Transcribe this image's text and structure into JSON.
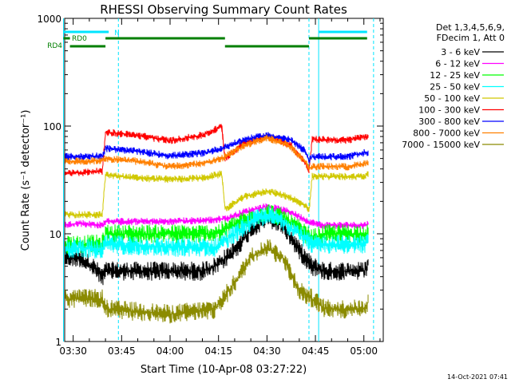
{
  "chart_data": {
    "type": "line",
    "title": "RHESSI Observing Summary Count Rates",
    "ylabel": "Count Rate (s⁻¹ detector⁻¹)",
    "xlabel": "Start Time (10-Apr-08 03:27:22)",
    "yscale": "log",
    "ylim": [
      1,
      1000
    ],
    "xlim": [
      "03:27:22",
      "05:06:00"
    ],
    "x_ticks": [
      "03:30",
      "03:45",
      "04:00",
      "04:15",
      "04:30",
      "04:45",
      "05:00"
    ],
    "y_ticks": [
      "1",
      "10",
      "100",
      "1000"
    ],
    "info_lines": [
      "Det 1,3,4,5,6,9,",
      "FDecim 1, Att 0"
    ],
    "timestamp": "14-Oct-2021 07:41",
    "flags": [
      {
        "name": "RD0",
        "color": "#007f00",
        "segments": [
          [
            "03:27",
            "03:29"
          ],
          [
            "03:40",
            "04:17"
          ],
          [
            "04:43",
            "05:01"
          ]
        ]
      },
      {
        "name": "RD4",
        "color": "#007f00",
        "segments": [
          [
            "03:29",
            "03:40"
          ],
          [
            "04:17",
            "04:43"
          ]
        ]
      },
      {
        "name": "N",
        "color": "#00e5ff",
        "segments": [
          [
            "03:27",
            "03:41"
          ],
          [
            "04:46",
            "05:01"
          ]
        ]
      }
    ],
    "vlines": {
      "color": "#00e5ff",
      "solid": [
        "03:27",
        "04:46"
      ],
      "dashed": [
        "03:44",
        "04:43",
        "05:03"
      ]
    },
    "series": [
      {
        "name": "3 - 6 keV",
        "color": "#000000",
        "points": [
          [
            "03:27",
            6
          ],
          [
            "03:32",
            6
          ],
          [
            "03:36",
            5
          ],
          [
            "03:39",
            4
          ],
          [
            "03:40",
            4.5
          ],
          [
            "04:00",
            4.5
          ],
          [
            "04:10",
            4.5
          ],
          [
            "04:14",
            5
          ],
          [
            "04:20",
            7
          ],
          [
            "04:25",
            11
          ],
          [
            "04:30",
            14
          ],
          [
            "04:35",
            12
          ],
          [
            "04:40",
            7
          ],
          [
            "04:44",
            5
          ],
          [
            "04:48",
            4.5
          ],
          [
            "05:00",
            4.5
          ],
          [
            "05:02",
            5.5
          ]
        ]
      },
      {
        "name": "6 - 12 keV",
        "color": "#ff00ff",
        "points": [
          [
            "03:27",
            12
          ],
          [
            "03:32",
            12.5
          ],
          [
            "03:39",
            12
          ],
          [
            "03:40",
            13
          ],
          [
            "04:00",
            13
          ],
          [
            "04:14",
            13.5
          ],
          [
            "04:18",
            14
          ],
          [
            "04:23",
            16
          ],
          [
            "04:30",
            18
          ],
          [
            "04:37",
            16
          ],
          [
            "04:43",
            13
          ],
          [
            "04:47",
            12
          ],
          [
            "05:00",
            12
          ],
          [
            "05:02",
            12.5
          ]
        ]
      },
      {
        "name": "12 - 25 keV",
        "color": "#00ff00",
        "points": [
          [
            "03:27",
            8
          ],
          [
            "03:32",
            8
          ],
          [
            "03:39",
            8
          ],
          [
            "03:40",
            10
          ],
          [
            "04:00",
            10
          ],
          [
            "04:14",
            10
          ],
          [
            "04:20",
            12
          ],
          [
            "04:25",
            14
          ],
          [
            "04:30",
            16
          ],
          [
            "04:35",
            14
          ],
          [
            "04:40",
            11
          ],
          [
            "04:44",
            9
          ],
          [
            "04:48",
            10
          ],
          [
            "05:00",
            10
          ],
          [
            "05:02",
            10
          ]
        ]
      },
      {
        "name": "25 - 50 keV",
        "color": "#00ffff",
        "points": [
          [
            "03:27",
            7
          ],
          [
            "03:32",
            7.5
          ],
          [
            "03:39",
            7
          ],
          [
            "03:40",
            8
          ],
          [
            "04:00",
            7.5
          ],
          [
            "04:14",
            7.5
          ],
          [
            "04:20",
            10
          ],
          [
            "04:25",
            13
          ],
          [
            "04:30",
            15
          ],
          [
            "04:35",
            13
          ],
          [
            "04:40",
            10
          ],
          [
            "04:44",
            8
          ],
          [
            "04:48",
            8
          ],
          [
            "05:00",
            8
          ],
          [
            "05:02",
            8.5
          ]
        ]
      },
      {
        "name": "50 - 100 keV",
        "color": "#d0c800",
        "points": [
          [
            "03:27",
            15
          ],
          [
            "03:32",
            15
          ],
          [
            "03:39",
            15
          ],
          [
            "03:40",
            35
          ],
          [
            "03:50",
            33
          ],
          [
            "04:00",
            32
          ],
          [
            "04:10",
            33
          ],
          [
            "04:16",
            36
          ],
          [
            "04:17",
            17
          ],
          [
            "04:23",
            22
          ],
          [
            "04:30",
            25
          ],
          [
            "04:37",
            22
          ],
          [
            "04:42",
            18
          ],
          [
            "04:43",
            16
          ],
          [
            "04:44",
            34
          ],
          [
            "05:00",
            34
          ],
          [
            "05:02",
            37
          ]
        ]
      },
      {
        "name": "100 - 300 keV",
        "color": "#ff0000",
        "points": [
          [
            "03:27",
            36
          ],
          [
            "03:32",
            37
          ],
          [
            "03:39",
            38
          ],
          [
            "03:40",
            88
          ],
          [
            "03:50",
            82
          ],
          [
            "04:00",
            73
          ],
          [
            "04:10",
            82
          ],
          [
            "04:16",
            99
          ],
          [
            "04:17",
            50
          ],
          [
            "04:23",
            70
          ],
          [
            "04:30",
            80
          ],
          [
            "04:37",
            68
          ],
          [
            "04:42",
            45
          ],
          [
            "04:43",
            38
          ],
          [
            "04:44",
            75
          ],
          [
            "04:55",
            74
          ],
          [
            "05:02",
            82
          ]
        ]
      },
      {
        "name": "300 - 800 keV",
        "color": "#0000ff",
        "points": [
          [
            "03:27",
            52
          ],
          [
            "03:32",
            52
          ],
          [
            "03:39",
            53
          ],
          [
            "03:40",
            62
          ],
          [
            "03:50",
            58
          ],
          [
            "04:00",
            53
          ],
          [
            "04:10",
            56
          ],
          [
            "04:16",
            62
          ],
          [
            "04:23",
            75
          ],
          [
            "04:30",
            82
          ],
          [
            "04:37",
            75
          ],
          [
            "04:42",
            58
          ],
          [
            "04:43",
            48
          ],
          [
            "04:44",
            52
          ],
          [
            "04:55",
            52
          ],
          [
            "05:02",
            58
          ]
        ]
      },
      {
        "name": "800 - 7000 keV",
        "color": "#ff8000",
        "points": [
          [
            "03:27",
            47
          ],
          [
            "03:32",
            47
          ],
          [
            "03:39",
            48
          ],
          [
            "03:40",
            50
          ],
          [
            "03:50",
            47
          ],
          [
            "04:00",
            42
          ],
          [
            "04:10",
            45
          ],
          [
            "04:16",
            50
          ],
          [
            "04:23",
            66
          ],
          [
            "04:30",
            78
          ],
          [
            "04:37",
            66
          ],
          [
            "04:42",
            46
          ],
          [
            "04:43",
            40
          ],
          [
            "04:44",
            42
          ],
          [
            "04:55",
            42
          ],
          [
            "05:02",
            46
          ]
        ]
      },
      {
        "name": "7000 - 15000 keV",
        "color": "#8b8b00",
        "points": [
          [
            "03:27",
            2.5
          ],
          [
            "03:32",
            2.5
          ],
          [
            "03:39",
            2.5
          ],
          [
            "03:40",
            2
          ],
          [
            "04:00",
            1.8
          ],
          [
            "04:14",
            2
          ],
          [
            "04:20",
            3.5
          ],
          [
            "04:25",
            6
          ],
          [
            "04:30",
            7.5
          ],
          [
            "04:35",
            6
          ],
          [
            "04:40",
            3
          ],
          [
            "04:44",
            2.5
          ],
          [
            "04:48",
            2
          ],
          [
            "05:00",
            2
          ],
          [
            "05:02",
            2.5
          ]
        ]
      }
    ]
  }
}
